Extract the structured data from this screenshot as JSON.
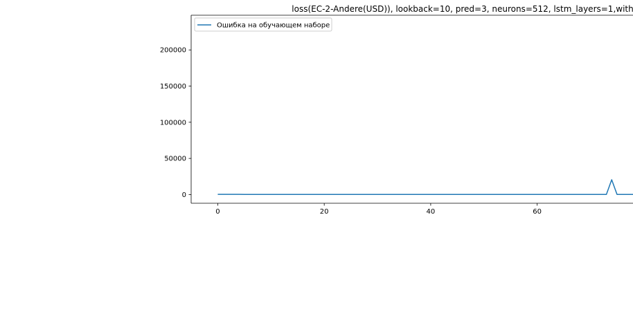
{
  "chart_data": {
    "type": "line",
    "title": "loss(EC-2-Andere(USD)), lookback=10, pred=3, neurons=512, lstm_layers=1,with",
    "xlabel": "",
    "ylabel": "",
    "xlim": [
      -5,
      78
    ],
    "ylim": [
      -12000,
      248000
    ],
    "x_ticks": [
      0,
      20,
      40,
      60
    ],
    "y_ticks": [
      0,
      50000,
      100000,
      150000,
      200000
    ],
    "grid": false,
    "legend_position": "top-left",
    "series": [
      {
        "name": "Ошибка на обучающем наборе",
        "color": "#1f77b4",
        "x": [
          0,
          1,
          2,
          3,
          4,
          5,
          6,
          7,
          8,
          9,
          10,
          11,
          12,
          13,
          14,
          15,
          16,
          17,
          18,
          19,
          20,
          21,
          22,
          23,
          24,
          25,
          26,
          27,
          28,
          29,
          30,
          31,
          32,
          33,
          34,
          35,
          36,
          37,
          38,
          39,
          40,
          41,
          42,
          43,
          44,
          45,
          46,
          47,
          48,
          49,
          50,
          51,
          52,
          53,
          54,
          55,
          56,
          57,
          58,
          59,
          60,
          61,
          62,
          63,
          64,
          65,
          66,
          67,
          68,
          69,
          70,
          71,
          72,
          73,
          74,
          75,
          76,
          77,
          78
        ],
        "values": [
          300,
          280,
          270,
          260,
          250,
          240,
          230,
          220,
          210,
          200,
          200,
          200,
          200,
          200,
          200,
          200,
          200,
          200,
          200,
          200,
          200,
          200,
          200,
          200,
          200,
          200,
          200,
          200,
          200,
          200,
          200,
          200,
          200,
          200,
          200,
          200,
          200,
          200,
          200,
          200,
          200,
          200,
          200,
          200,
          200,
          200,
          200,
          200,
          200,
          200,
          200,
          200,
          200,
          200,
          200,
          200,
          200,
          200,
          200,
          200,
          200,
          200,
          200,
          200,
          200,
          200,
          200,
          200,
          200,
          200,
          200,
          200,
          200,
          200,
          20500,
          200,
          200,
          200,
          200
        ]
      }
    ]
  }
}
